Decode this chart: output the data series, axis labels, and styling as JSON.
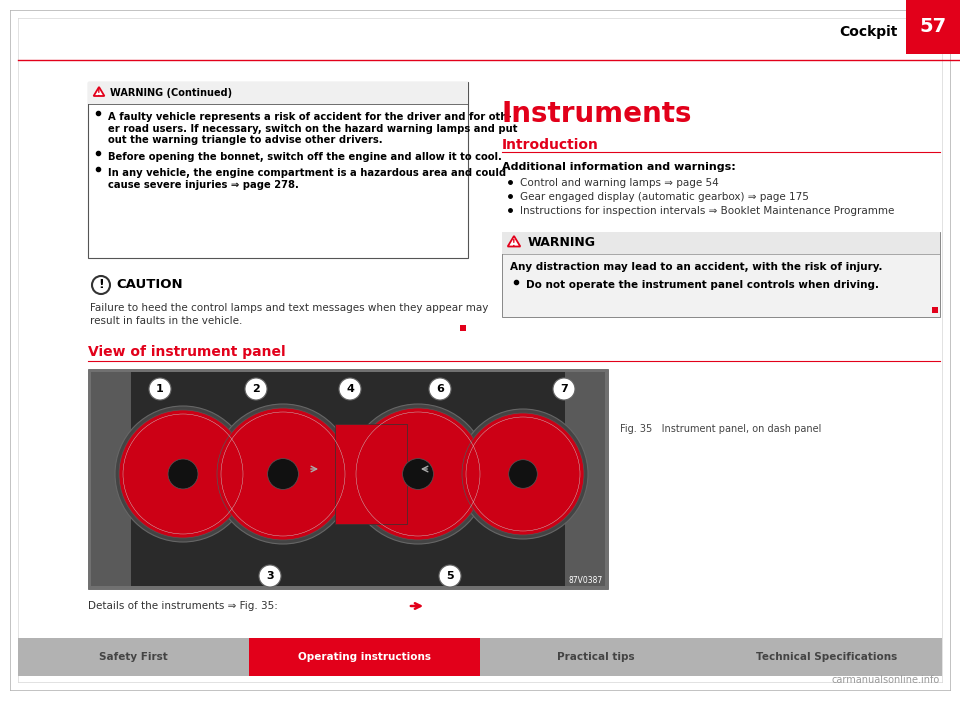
{
  "page_bg": "#ffffff",
  "header_text": "Cockpit",
  "header_page_num": "57",
  "red_color": "#e2001a",
  "black_color": "#000000",
  "warning_continued_bullets": [
    [
      "A faulty vehicle represents a risk of accident for the driver and for oth-",
      "er road users. If necessary, switch on the hazard warning lamps and put",
      "out the warning triangle to advise other drivers."
    ],
    [
      "Before opening the bonnet, switch off the engine and allow it to cool."
    ],
    [
      "In any vehicle, the engine compartment is a hazardous area and could",
      "cause severe injuries ⇒ page 278."
    ]
  ],
  "caution_text_lines": [
    "Failure to heed the control lamps and text messages when they appear may",
    "result in faults in the vehicle."
  ],
  "instruments_title": "Instruments",
  "introduction_heading": "Introduction",
  "additional_info_heading": "Additional information and warnings:",
  "info_bullets": [
    "Control and warning lamps ⇒ page 54",
    "Gear engaged display (automatic gearbox) ⇒ page 175",
    "Instructions for inspection intervals ⇒ Booklet Maintenance Programme"
  ],
  "right_warning_text": "Any distraction may lead to an accident, with the risk of injury.",
  "right_warning_bullet": "Do not operate the instrument panel controls when driving.",
  "view_section_heading": "View of instrument panel",
  "fig_caption": "Fig. 35   Instrument panel, on dash panel",
  "details_text": "Details of the instruments ⇒ Fig. 35:",
  "bottom_tabs": [
    "Safety First",
    "Operating instructions",
    "Practical tips",
    "Technical Specifications"
  ],
  "active_tab": 1,
  "active_color": "#e2001a",
  "inactive_color": "#b2b2b2",
  "watermark": "carmanualsonline.info"
}
